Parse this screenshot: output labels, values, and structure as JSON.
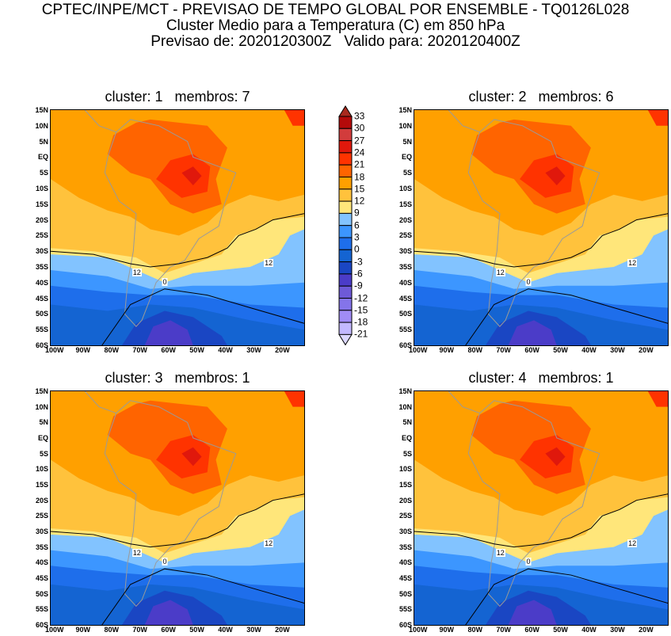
{
  "header": {
    "line1": "CPTEC/INPE/MCT - PREVISAO DE TEMPO GLOBAL POR ENSEMBLE - TQ0126L028",
    "line2": "Cluster Medio para a Temperatura (C) em 850 hPa",
    "line3": "Previsao de: 2020120300Z   Valido para: 2020120400Z"
  },
  "panels": [
    {
      "title": "cluster: 1   membros: 7",
      "contour_labels": [
        "12",
        "12",
        "0"
      ]
    },
    {
      "title": "cluster: 2   membros: 6",
      "contour_labels": [
        "12",
        "12",
        "0"
      ]
    },
    {
      "title": "cluster: 3   membros: 1",
      "contour_labels": [
        "12",
        "12",
        "0"
      ]
    },
    {
      "title": "cluster: 4   membros: 1",
      "contour_labels": [
        "12",
        "12",
        "0"
      ]
    }
  ],
  "axes": {
    "lat_labels": [
      "15N",
      "10N",
      "5N",
      "EQ",
      "5S",
      "10S",
      "15S",
      "20S",
      "25S",
      "30S",
      "35S",
      "40S",
      "45S",
      "50S",
      "55S",
      "60S"
    ],
    "lon_labels": [
      "100W",
      "90W",
      "80W",
      "70W",
      "60W",
      "50W",
      "40W",
      "30W",
      "20W"
    ]
  },
  "colorbar": {
    "labels": [
      "33",
      "30",
      "27",
      "24",
      "21",
      "18",
      "15",
      "12",
      "9",
      "6",
      "3",
      "0",
      "-3",
      "-6",
      "-9",
      "-12",
      "-15",
      "-18",
      "-21"
    ],
    "colors": [
      "#a82a1e",
      "#b40a0a",
      "#d23c3c",
      "#e0180c",
      "#ff3300",
      "#ff6400",
      "#ffa000",
      "#ffc23c",
      "#ffe67a",
      "#82c3ff",
      "#3c96ff",
      "#1e6eeb",
      "#1464d2",
      "#1a46c3",
      "#4b3cc8",
      "#6e5ad7",
      "#8474ea",
      "#a08cf5",
      "#c3b9ff",
      "#dcd8ff"
    ]
  }
}
